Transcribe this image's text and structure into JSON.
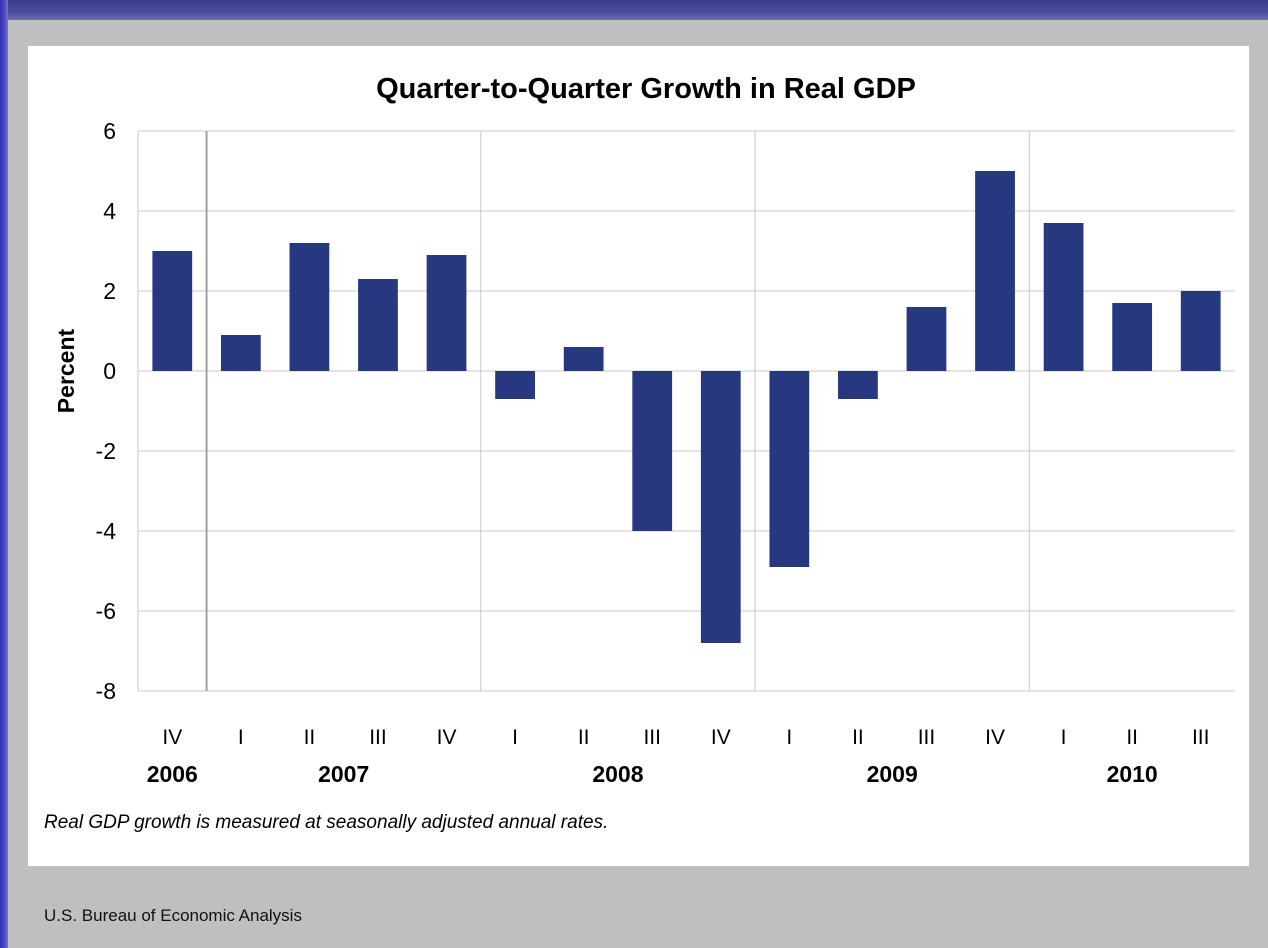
{
  "source": "U.S. Bureau of Economic Analysis",
  "chart_data": {
    "type": "bar",
    "title": "Quarter-to-Quarter Growth in Real GDP",
    "ylabel": "Percent",
    "xlabel": "",
    "ylim": [
      -8,
      6
    ],
    "yticks": [
      6,
      4,
      2,
      0,
      -2,
      -4,
      -6,
      -8
    ],
    "grid": true,
    "bar_color": "#283880",
    "categories": [
      "IV",
      "I",
      "II",
      "III",
      "IV",
      "I",
      "II",
      "III",
      "IV",
      "I",
      "II",
      "III",
      "IV",
      "I",
      "II",
      "III"
    ],
    "years": [
      {
        "label": "2006",
        "first": 0,
        "last": 0
      },
      {
        "label": "2007",
        "first": 1,
        "last": 4
      },
      {
        "label": "2008",
        "first": 5,
        "last": 8
      },
      {
        "label": "2009",
        "first": 9,
        "last": 12
      },
      {
        "label": "2010",
        "first": 13,
        "last": 15
      }
    ],
    "values": [
      3.0,
      0.9,
      3.2,
      2.3,
      2.9,
      -0.7,
      0.6,
      -4.0,
      -6.8,
      -4.9,
      -0.7,
      1.6,
      5.0,
      3.7,
      1.7,
      2.0
    ],
    "note": "Real GDP growth is measured at seasonally adjusted annual rates."
  }
}
